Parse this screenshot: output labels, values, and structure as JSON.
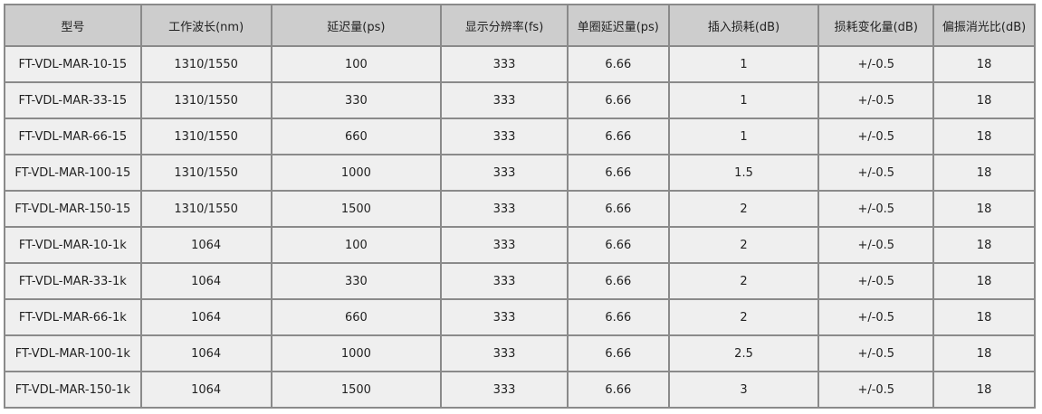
{
  "table": {
    "headers": [
      "型号",
      "工作波长(nm)",
      "延迟量(ps)",
      "显示分辨率(fs)",
      "单圈延迟量(ps)",
      "插入损耗(dB)",
      "损耗变化量(dB)",
      "偏振消光比(dB)"
    ],
    "rows": [
      [
        "FT-VDL-MAR-10-15",
        "1310/1550",
        "100",
        "333",
        "6.66",
        "1",
        "+/-0.5",
        "18"
      ],
      [
        "FT-VDL-MAR-33-15",
        "1310/1550",
        "330",
        "333",
        "6.66",
        "1",
        "+/-0.5",
        "18"
      ],
      [
        "FT-VDL-MAR-66-15",
        "1310/1550",
        "660",
        "333",
        "6.66",
        "1",
        "+/-0.5",
        "18"
      ],
      [
        "FT-VDL-MAR-100-15",
        "1310/1550",
        "1000",
        "333",
        "6.66",
        "1.5",
        "+/-0.5",
        "18"
      ],
      [
        "FT-VDL-MAR-150-15",
        "1310/1550",
        "1500",
        "333",
        "6.66",
        "2",
        "+/-0.5",
        "18"
      ],
      [
        "FT-VDL-MAR-10-1k",
        "1064",
        "100",
        "333",
        "6.66",
        "2",
        "+/-0.5",
        "18"
      ],
      [
        "FT-VDL-MAR-33-1k",
        "1064",
        "330",
        "333",
        "6.66",
        "2",
        "+/-0.5",
        "18"
      ],
      [
        "FT-VDL-MAR-66-1k",
        "1064",
        "660",
        "333",
        "6.66",
        "2",
        "+/-0.5",
        "18"
      ],
      [
        "FT-VDL-MAR-100-1k",
        "1064",
        "1000",
        "333",
        "6.66",
        "2.5",
        "+/-0.5",
        "18"
      ],
      [
        "FT-VDL-MAR-150-1k",
        "1064",
        "1500",
        "333",
        "6.66",
        "3",
        "+/-0.5",
        "18"
      ]
    ]
  }
}
